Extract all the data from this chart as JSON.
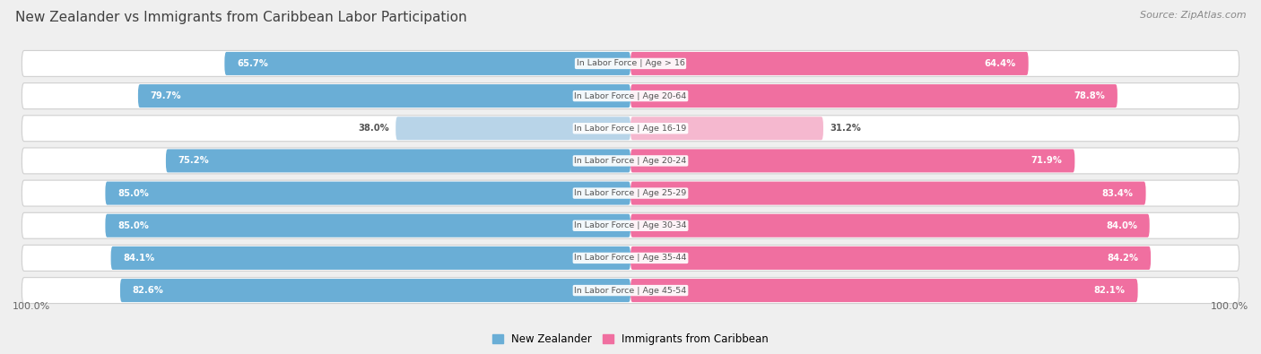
{
  "title": "New Zealander vs Immigrants from Caribbean Labor Participation",
  "source": "Source: ZipAtlas.com",
  "categories": [
    "In Labor Force | Age > 16",
    "In Labor Force | Age 20-64",
    "In Labor Force | Age 16-19",
    "In Labor Force | Age 20-24",
    "In Labor Force | Age 25-29",
    "In Labor Force | Age 30-34",
    "In Labor Force | Age 35-44",
    "In Labor Force | Age 45-54"
  ],
  "nz_values": [
    65.7,
    79.7,
    38.0,
    75.2,
    85.0,
    85.0,
    84.1,
    82.6
  ],
  "imm_values": [
    64.4,
    78.8,
    31.2,
    71.9,
    83.4,
    84.0,
    84.2,
    82.1
  ],
  "nz_color_strong": "#6aaed6",
  "nz_color_light": "#b8d4e8",
  "imm_color_strong": "#f06fa0",
  "imm_color_light": "#f5b8cf",
  "label_color_white": "#ffffff",
  "label_color_dark": "#555555",
  "center_label_color": "#555555",
  "bg_color": "#efefef",
  "title_color": "#404040",
  "source_color": "#888888",
  "legend_nz_label": "New Zealander",
  "legend_imm_label": "Immigrants from Caribbean",
  "bottom_left_label": "100.0%",
  "bottom_right_label": "100.0%",
  "light_threshold": 50.0,
  "max_val": 100.0
}
